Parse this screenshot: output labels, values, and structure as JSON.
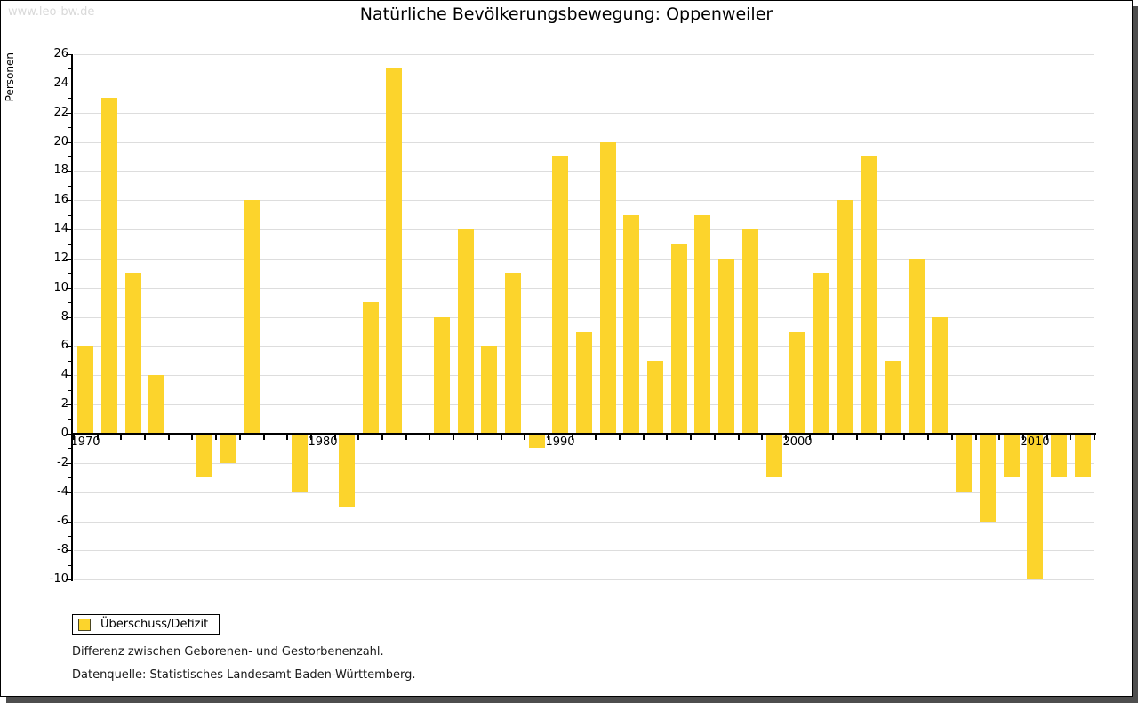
{
  "watermark": "www.leo-bw.de",
  "title": "Natürliche Bevölkerungsbewegung: Oppenweiler",
  "y_axis_title": "Personen",
  "legend": {
    "label": "Überschuss/Defizit"
  },
  "footnotes": [
    "Differenz zwischen Geborenen- und Gestorbenenzahl.",
    "Datenquelle: Statistisches Landesamt Baden-Württemberg."
  ],
  "colors": {
    "bar": "#fcd42c",
    "grid": "#dddddd",
    "axis": "#000000",
    "text": "#000000",
    "footnote": "#1a1a1a",
    "watermark": "#d9d9d9",
    "shadow": "#4e4e4e",
    "swatch_border": "#4a4520"
  },
  "chart_data": {
    "type": "bar",
    "title": "Natürliche Bevölkerungsbewegung: Oppenweiler",
    "xlabel": "",
    "ylabel": "Personen",
    "ylim": [
      -10,
      26
    ],
    "ytick_step": 2,
    "grid": true,
    "legend_entries": [
      "Überschuss/Defizit"
    ],
    "legend_position": "bottom-left",
    "x_decade_labels": [
      "1970",
      "1980",
      "1990",
      "2000",
      "2010"
    ],
    "years": [
      1970,
      1971,
      1972,
      1973,
      1974,
      1975,
      1976,
      1977,
      1978,
      1979,
      1980,
      1981,
      1982,
      1983,
      1984,
      1985,
      1986,
      1987,
      1988,
      1989,
      1990,
      1991,
      1992,
      1993,
      1994,
      1995,
      1996,
      1997,
      1998,
      1999,
      2000,
      2001,
      2002,
      2003,
      2004,
      2005,
      2006,
      2007,
      2008,
      2009,
      2010,
      2011,
      2012
    ],
    "values": [
      6,
      23,
      11,
      4,
      0,
      -3,
      -2,
      16,
      0,
      -4,
      0,
      -5,
      9,
      25,
      0,
      8,
      14,
      6,
      11,
      -1,
      19,
      7,
      20,
      15,
      5,
      13,
      15,
      12,
      14,
      -3,
      7,
      11,
      16,
      19,
      5,
      12,
      8,
      -4,
      -6,
      -3,
      -10,
      -3,
      -3
    ]
  }
}
